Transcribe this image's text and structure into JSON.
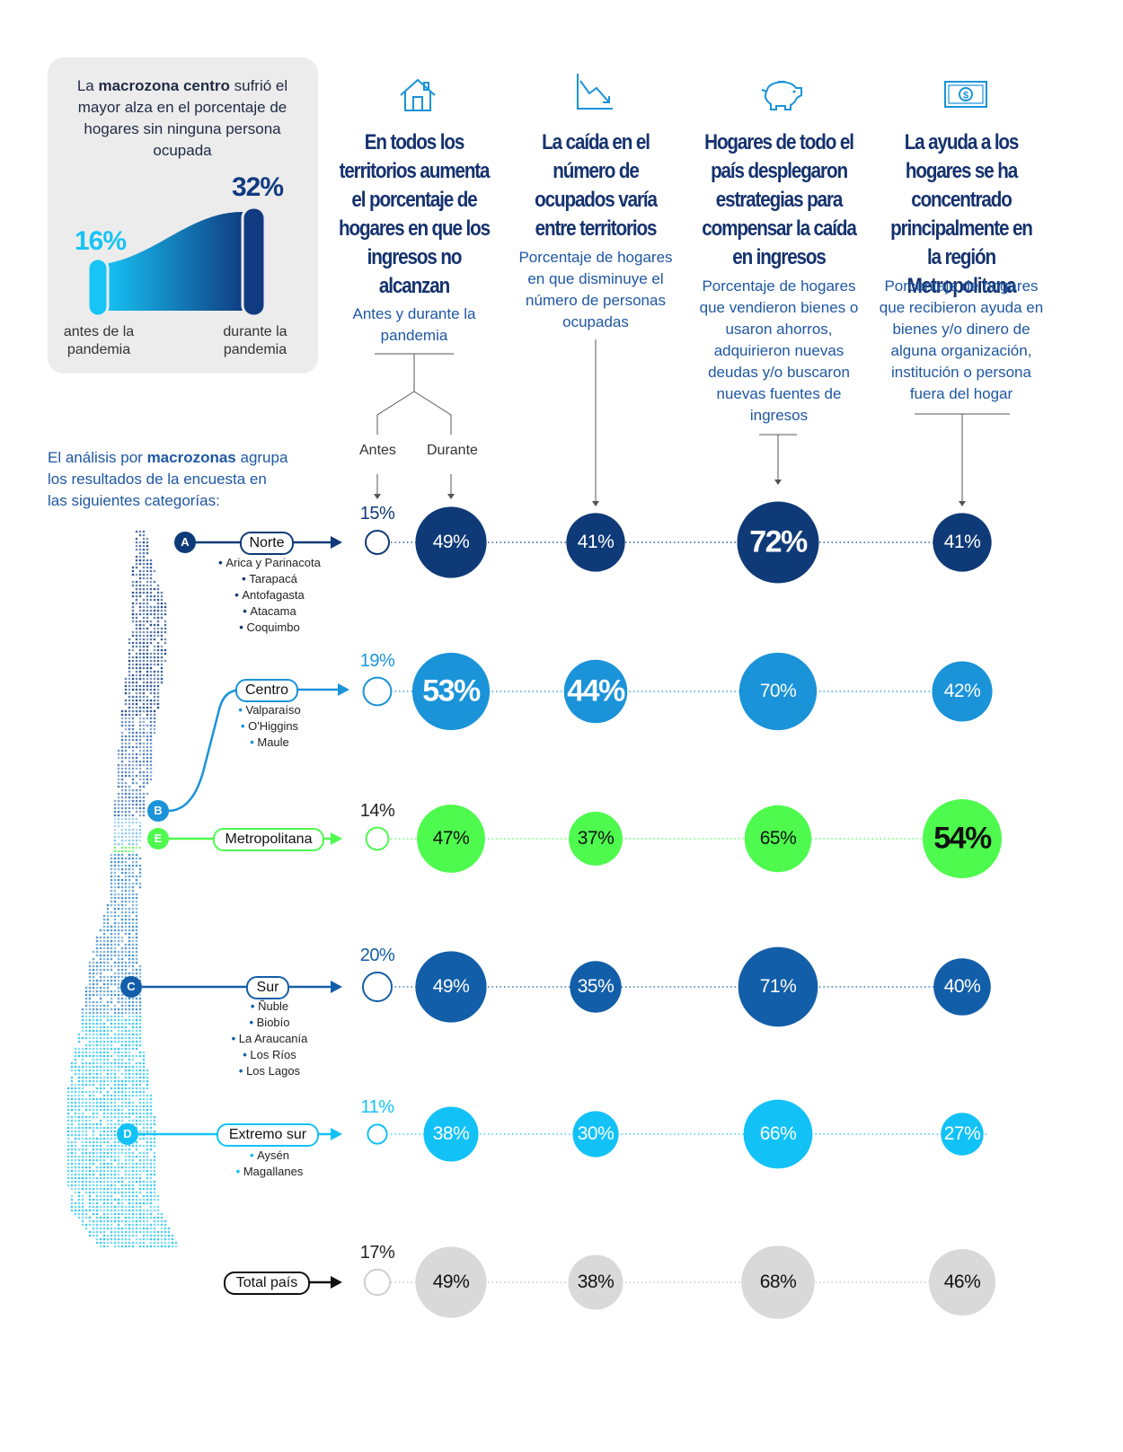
{
  "callout": {
    "text_pre": "La ",
    "text_bold": "macrozona centro",
    "text_post": " sufrió el mayor alza en el porcentaje de hogares sin ninguna persona ocupada",
    "before_value": "16%",
    "after_value": "32%",
    "before_label": "antes de la pandemia",
    "after_label": "durante la pandemia"
  },
  "columns": [
    {
      "icon": "house-icon",
      "title": "En todos los territorios aumenta el porcentaje de hogares en que los ingresos no alcanzan",
      "subtitle": "Antes y durante la pandemia"
    },
    {
      "icon": "trend-down-icon",
      "title": "La caída en el número de ocupados varía entre territorios",
      "subtitle": "Porcentaje de hogares en que disminuye el número de personas ocupadas"
    },
    {
      "icon": "piggy-bank-icon",
      "title": "Hogares de todo el país desplegaron estrategias para compensar la caída en ingresos",
      "subtitle": "Porcentaje de hogares que vendieron bienes o usaron ahorros, adquirieron nuevas deudas y/o buscaron nuevas fuentes de ingresos"
    },
    {
      "icon": "money-bill-icon",
      "title": "La ayuda a los hogares se ha concentrado principalmente en la región Metropolitana",
      "subtitle": "Porcentaje de hogares que recibieron ayuda en bienes y/o dinero de alguna organización, institución o persona fuera del hogar"
    }
  ],
  "stage_labels": {
    "antes": "Antes",
    "durante": "Durante"
  },
  "intro": {
    "pre": "El análisis por ",
    "bold": "macrozonas",
    "post": " agrupa los resultados de la encuesta en las siguientes categorías:"
  },
  "colors": {
    "norte": "#0f3a78",
    "centro": "#1a93d9",
    "metropolitana": "#4dfa4d",
    "sur": "#135ea8",
    "extremo_sur": "#12c2f7",
    "total": "#d9d9d9",
    "title": "#15326e",
    "subtitle": "#1e57a3"
  },
  "chart_data": {
    "type": "bubble",
    "categories": [
      "Norte",
      "Centro",
      "Metropolitana",
      "Sur",
      "Extremo sur",
      "Total país"
    ],
    "series": [
      {
        "name": "Antes",
        "values": [
          15,
          19,
          14,
          20,
          11,
          17
        ]
      },
      {
        "name": "Durante",
        "values": [
          49,
          53,
          47,
          49,
          38,
          49
        ]
      },
      {
        "name": "Disminuye número de ocupados",
        "values": [
          41,
          44,
          37,
          35,
          30,
          38
        ]
      },
      {
        "name": "Estrategias para compensar la caída en ingresos",
        "values": [
          72,
          70,
          65,
          71,
          66,
          68
        ]
      },
      {
        "name": "Ayuda recibida",
        "values": [
          41,
          42,
          54,
          40,
          27,
          46
        ]
      }
    ]
  },
  "rows": [
    {
      "key": "norte",
      "badge": "A",
      "name": "Norte",
      "subregions": [
        "Arica y Parinacota",
        "Tarapacá",
        "Antofagasta",
        "Atacama",
        "Coquimbo"
      ],
      "antes": "15%",
      "durante": "49%",
      "ocupados": "41%",
      "estrategias": "72%",
      "ayuda": "41%"
    },
    {
      "key": "centro",
      "badge": "B",
      "name": "Centro",
      "subregions": [
        "Valparaíso",
        "O'Higgins",
        "Maule"
      ],
      "antes": "19%",
      "durante": "53%",
      "ocupados": "44%",
      "estrategias": "70%",
      "ayuda": "42%"
    },
    {
      "key": "metropolitana",
      "badge": "E",
      "name": "Metropolitana",
      "subregions": [],
      "antes": "14%",
      "durante": "47%",
      "ocupados": "37%",
      "estrategias": "65%",
      "ayuda": "54%"
    },
    {
      "key": "sur",
      "badge": "C",
      "name": "Sur",
      "subregions": [
        "Ñuble",
        "Biobío",
        "La Araucanía",
        "Los Ríos",
        "Los Lagos"
      ],
      "antes": "20%",
      "durante": "49%",
      "ocupados": "35%",
      "estrategias": "71%",
      "ayuda": "40%"
    },
    {
      "key": "extremo_sur",
      "badge": "D",
      "name": "Extremo sur",
      "subregions": [
        "Aysén",
        "Magallanes"
      ],
      "antes": "11%",
      "durante": "38%",
      "ocupados": "30%",
      "estrategias": "66%",
      "ayuda": "27%"
    },
    {
      "key": "total",
      "badge": "",
      "name": "Total país",
      "subregions": [],
      "antes": "17%",
      "durante": "49%",
      "ocupados": "38%",
      "estrategias": "68%",
      "ayuda": "46%"
    }
  ]
}
